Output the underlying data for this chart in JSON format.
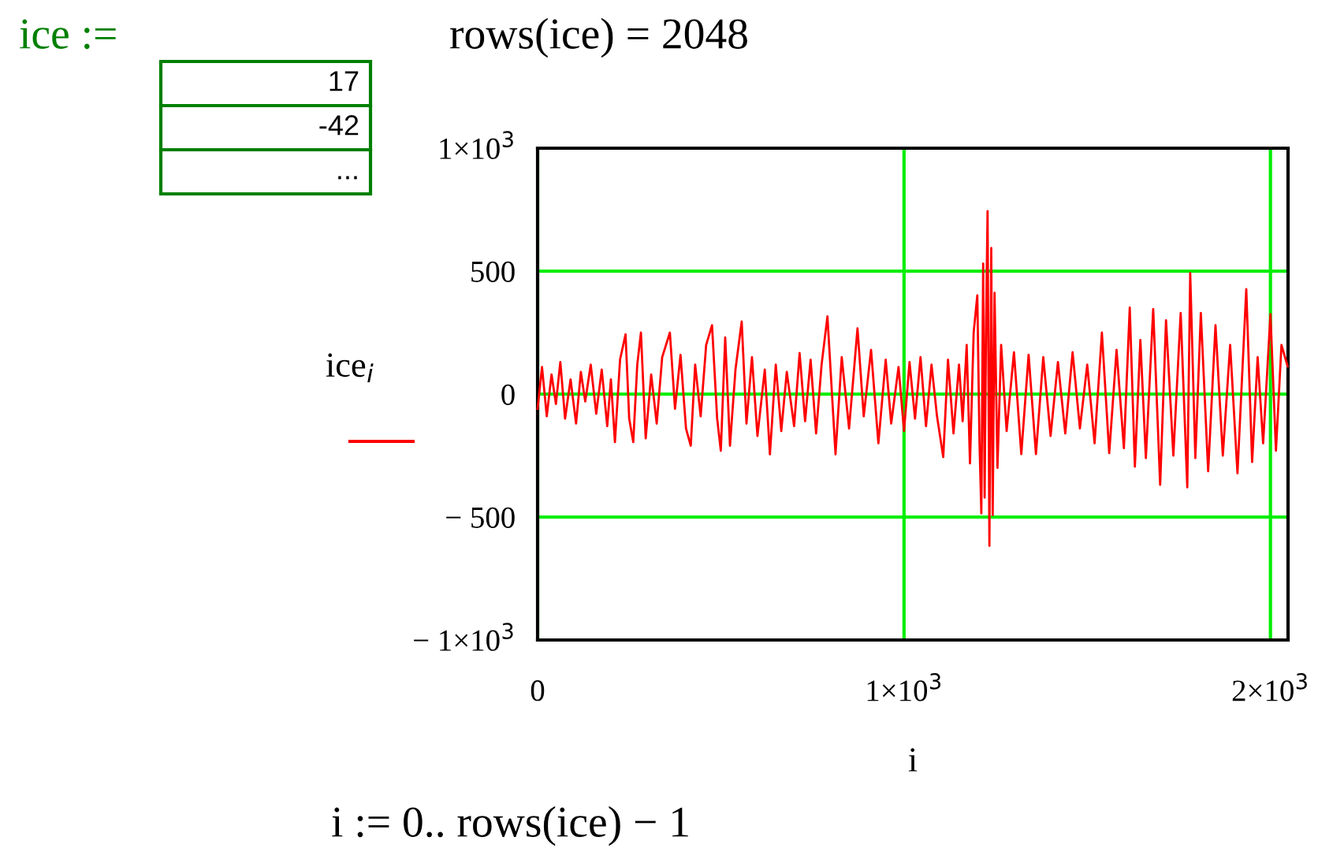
{
  "chart_data": {
    "type": "line",
    "xlabel": "i",
    "ylabel": "ice$_{i}$",
    "annotations": [
      "ice :=",
      "17",
      "-42",
      "...",
      "rows(ice) = 2048",
      "i := 0.. rows(ice) − 1"
    ],
    "xlim": [
      0,
      2048
    ],
    "ylim": [
      -1000,
      1000
    ],
    "xticks": [
      0,
      {
        "value": 1000,
        "label": "1×10$^{3}$"
      },
      {
        "value": 2000,
        "label": "2×10$^{3}$"
      }
    ],
    "yticks": [
      {
        "value": -1000,
        "label": "− 1×10$^{3}$"
      },
      {
        "value": -500,
        "label": "− 500"
      },
      0,
      500,
      {
        "value": 1000,
        "label": "1×10$^{3}$"
      }
    ],
    "grid": true,
    "series": [
      {
        "color": "#ff0000",
        "x": [
          0,
          12,
          25,
          38,
          50,
          62,
          75,
          90,
          105,
          118,
          130,
          145,
          160,
          175,
          190,
          200,
          211,
          225,
          240,
          250,
          261,
          272,
          282,
          295,
          310,
          325,
          340,
          361,
          375,
          390,
          405,
          418,
          430,
          445,
          460,
          476,
          490,
          500,
          512,
          525,
          540,
          557,
          570,
          585,
          600,
          620,
          634,
          650,
          665,
          680,
          700,
          715,
          730,
          745,
          760,
          775,
          791,
          813,
          830,
          850,
          873,
          890,
          910,
          930,
          950,
          965,
          985,
          1000,
          1015,
          1030,
          1045,
          1060,
          1075,
          1090,
          1107,
          1120,
          1135,
          1150,
          1160,
          1171,
          1180,
          1190,
          1200,
          1206,
          1211,
          1216,
          1220,
          1224,
          1228,
          1233,
          1238,
          1242,
          1247,
          1255,
          1265,
          1280,
          1300,
          1320,
          1340,
          1360,
          1380,
          1400,
          1420,
          1440,
          1460,
          1480,
          1500,
          1520,
          1540,
          1560,
          1580,
          1600,
          1616,
          1630,
          1645,
          1660,
          1680,
          1699,
          1715,
          1735,
          1755,
          1773,
          1781,
          1795,
          1810,
          1830,
          1850,
          1870,
          1890,
          1910,
          1934,
          1950,
          1965,
          1980,
          2000,
          2015,
          2030,
          2047
        ],
        "values": [
          -60,
          110,
          -90,
          80,
          -40,
          130,
          -100,
          60,
          -120,
          90,
          -30,
          120,
          -80,
          100,
          -130,
          60,
          -195,
          140,
          243,
          -100,
          -195,
          120,
          250,
          -180,
          80,
          -120,
          150,
          250,
          -60,
          160,
          -140,
          -210,
          120,
          -90,
          200,
          280,
          -100,
          -230,
          230,
          -210,
          100,
          295,
          -120,
          150,
          -170,
          100,
          -245,
          120,
          -150,
          90,
          -130,
          167,
          -110,
          140,
          -160,
          120,
          316,
          -245,
          150,
          -140,
          267,
          -90,
          180,
          -200,
          140,
          -120,
          110,
          -150,
          130,
          -100,
          150,
          -130,
          120,
          -90,
          -256,
          140,
          -160,
          120,
          -110,
          200,
          -282,
          250,
          402,
          -200,
          -485,
          531,
          -421,
          300,
          744,
          -617,
          594,
          -492,
          412,
          -300,
          200,
          -150,
          170,
          -244,
          160,
          -244,
          150,
          -170,
          130,
          -160,
          170,
          -140,
          120,
          -200,
          250,
          -240,
          180,
          -220,
          352,
          -295,
          220,
          -260,
          346,
          -369,
          300,
          -250,
          330,
          -379,
          492,
          -260,
          330,
          -314,
          280,
          -250,
          200,
          -322,
          427,
          -276,
          150,
          -200,
          325,
          -230,
          200,
          113
        ]
      }
    ]
  }
}
